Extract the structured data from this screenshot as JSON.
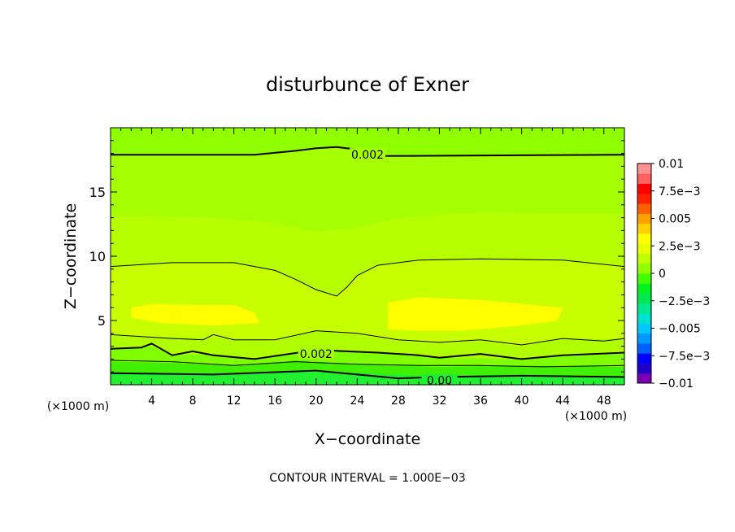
{
  "chart_data": {
    "type": "contour",
    "title": "disturbunce of Exner",
    "xlabel": "X−coordinate",
    "ylabel": "Z−coordinate",
    "x_unit": "(×1000 m)",
    "z_unit": "(×1000 m)",
    "footer": "CONTOUR INTERVAL = 1.000E−03",
    "xlim": [
      0,
      50
    ],
    "ylim": [
      0,
      20
    ],
    "x_ticks": [
      4,
      8,
      12,
      16,
      20,
      24,
      28,
      32,
      36,
      40,
      44,
      48
    ],
    "y_ticks": [
      5,
      10,
      15
    ],
    "colorbar": {
      "range": [
        -0.01,
        0.01
      ],
      "labels": [
        {
          "value": 0.01,
          "text": "0.01"
        },
        {
          "value": 0.0075,
          "text": "7.5e−3"
        },
        {
          "value": 0.005,
          "text": "0.005"
        },
        {
          "value": 0.0025,
          "text": "2.5e−3"
        },
        {
          "value": 0,
          "text": "0"
        },
        {
          "value": -0.0025,
          "text": "−2.5e−3"
        },
        {
          "value": -0.005,
          "text": "−0.005"
        },
        {
          "value": -0.0075,
          "text": "−7.5e−3"
        },
        {
          "value": -0.01,
          "text": "−0.01"
        }
      ],
      "colors": [
        "#7b00b4",
        "#2000c8",
        "#0000ff",
        "#0060ff",
        "#0098ff",
        "#00c8ff",
        "#00e0d0",
        "#00e890",
        "#00e850",
        "#00f020",
        "#40ff00",
        "#90ff00",
        "#c0ff00",
        "#e8ff00",
        "#ffff00",
        "#ffd000",
        "#ffa000",
        "#ff6000",
        "#ff2000",
        "#ff0000",
        "#ff6060",
        "#ff9090"
      ]
    },
    "contour_labels": [
      {
        "x": 25,
        "z": 17.9,
        "text": "0.002"
      },
      {
        "x": 20,
        "z": 2.4,
        "text": "0.002"
      },
      {
        "x": 32,
        "z": 0.35,
        "text": "0.00"
      }
    ]
  }
}
